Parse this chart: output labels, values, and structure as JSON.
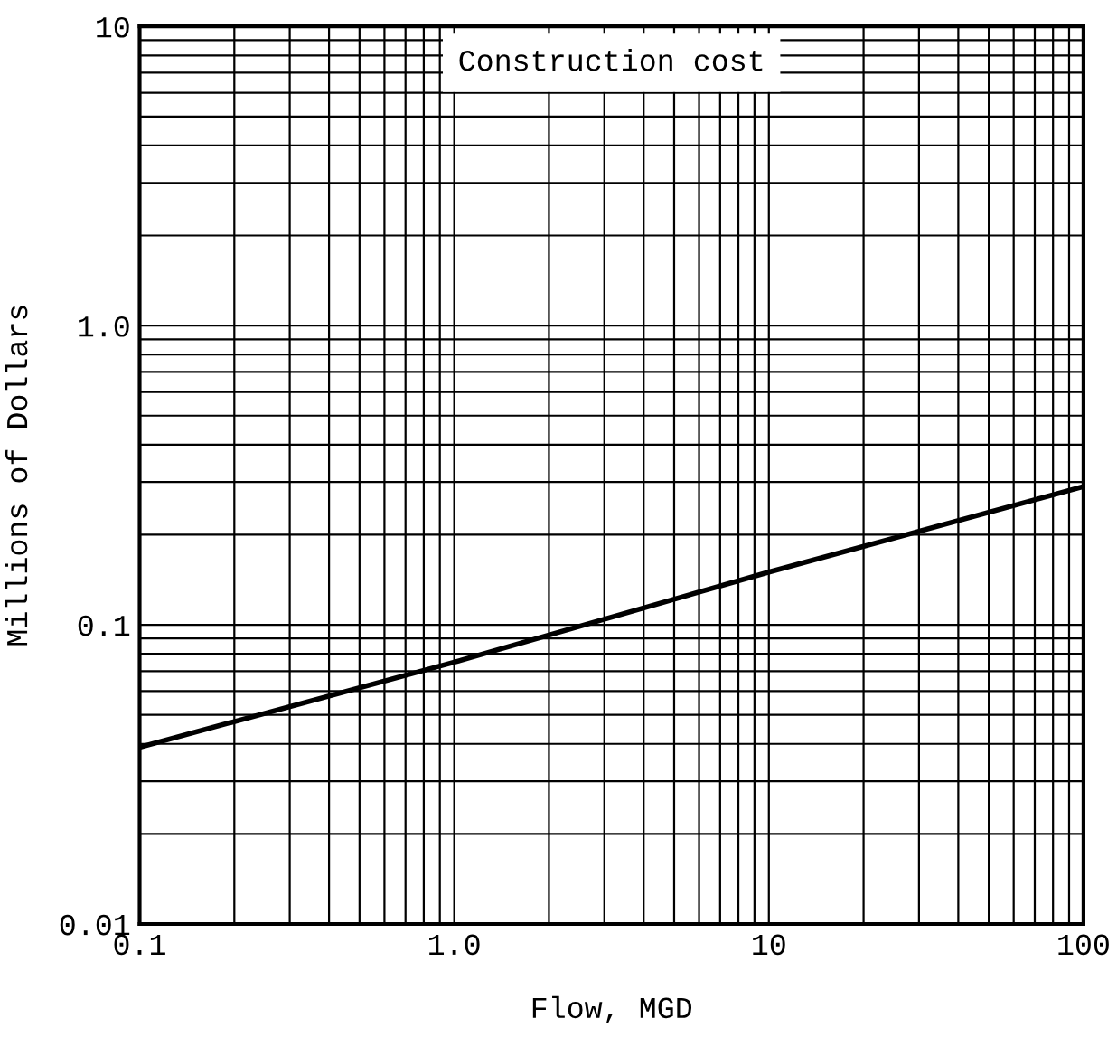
{
  "chart_data": {
    "type": "line",
    "annotations": [
      "Construction cost"
    ],
    "xlabel": "Flow, MGD",
    "ylabel": "Millions of Dollars",
    "x": [
      0.1,
      1,
      10,
      100
    ],
    "series": [
      {
        "color": "#000000",
        "values": [
          0.039,
          0.075,
          0.15,
          0.29
        ]
      }
    ],
    "log": "xy",
    "xlim": [
      0.1,
      100
    ],
    "ylim": [
      0.01,
      10
    ],
    "xticks": [
      0.1,
      {
        "value": 1,
        "label": "1.0"
      },
      10,
      100
    ],
    "yticks": [
      0.01,
      0.1,
      {
        "value": 1,
        "label": "1.0"
      },
      10
    ],
    "grid": true,
    "line_style": "solid",
    "marker": "none"
  }
}
